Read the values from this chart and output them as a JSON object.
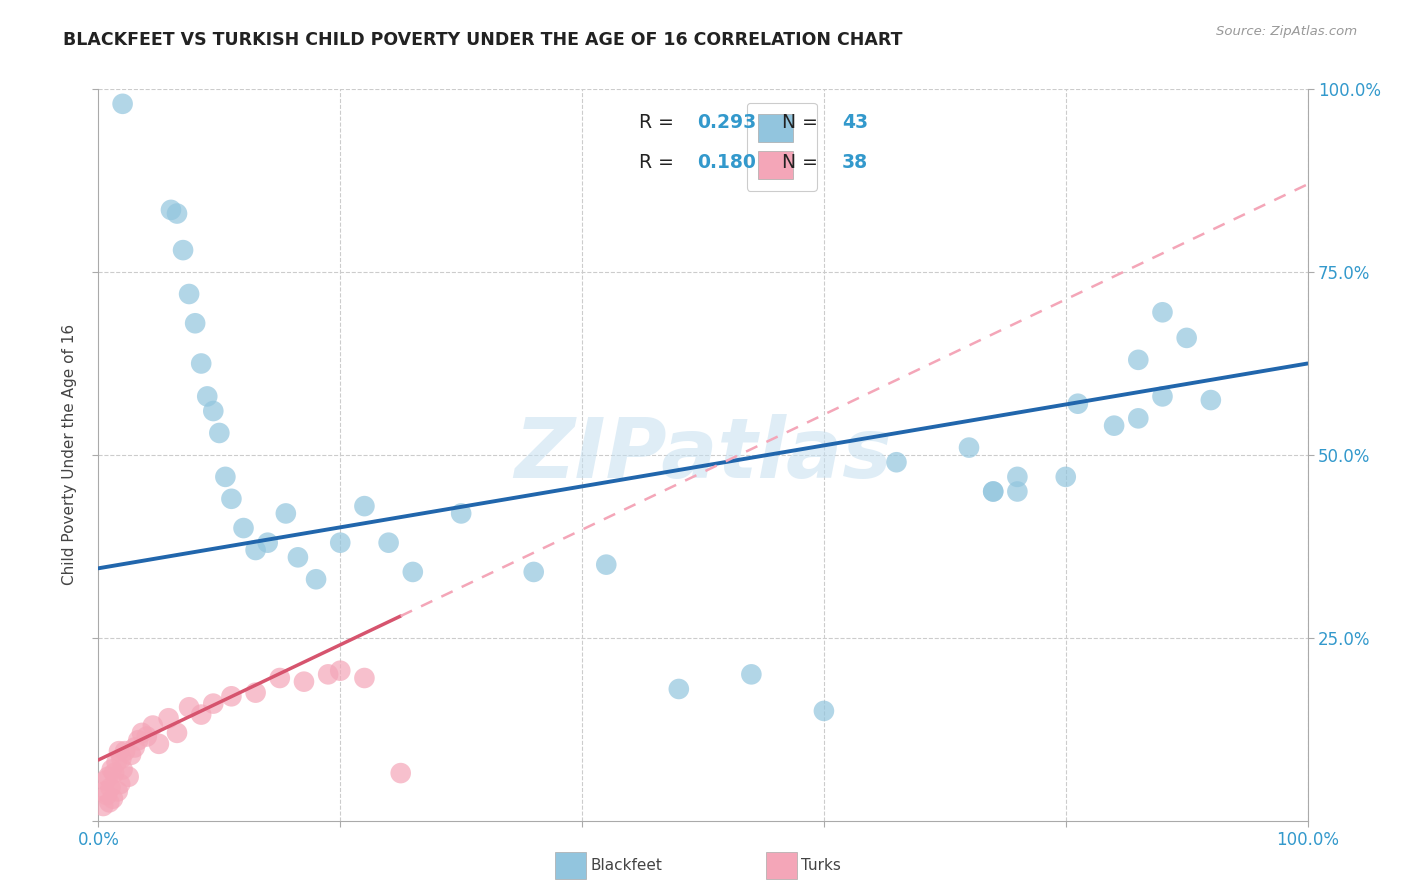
{
  "title": "BLACKFEET VS TURKISH CHILD POVERTY UNDER THE AGE OF 16 CORRELATION CHART",
  "source": "Source: ZipAtlas.com",
  "ylabel": "Child Poverty Under the Age of 16",
  "xlim": [
    0.0,
    1.0
  ],
  "ylim": [
    0.0,
    1.0
  ],
  "blackfeet_color": "#92c5de",
  "turks_color": "#f4a6b8",
  "trendline_blue_color": "#2166ac",
  "trendline_pink_color": "#d6546e",
  "trendline_dashed_color": "#f4a6b8",
  "watermark_color": "#c5dff0",
  "blackfeet_x": [
    0.02,
    0.06,
    0.065,
    0.07,
    0.075,
    0.08,
    0.085,
    0.09,
    0.095,
    0.1,
    0.105,
    0.11,
    0.12,
    0.13,
    0.14,
    0.155,
    0.165,
    0.18,
    0.2,
    0.22,
    0.24,
    0.26,
    0.3,
    0.36,
    0.42,
    0.48,
    0.54,
    0.6,
    0.66,
    0.72,
    0.74,
    0.76,
    0.8,
    0.84,
    0.86,
    0.88,
    0.9,
    0.92,
    0.88,
    0.86,
    0.81,
    0.76,
    0.74
  ],
  "blackfeet_y": [
    0.98,
    0.835,
    0.83,
    0.78,
    0.72,
    0.68,
    0.625,
    0.58,
    0.56,
    0.53,
    0.47,
    0.44,
    0.4,
    0.37,
    0.38,
    0.42,
    0.36,
    0.33,
    0.38,
    0.43,
    0.38,
    0.34,
    0.42,
    0.34,
    0.35,
    0.18,
    0.2,
    0.15,
    0.49,
    0.51,
    0.45,
    0.45,
    0.47,
    0.54,
    0.55,
    0.58,
    0.66,
    0.575,
    0.695,
    0.63,
    0.57,
    0.47,
    0.45
  ],
  "turks_x": [
    0.004,
    0.005,
    0.006,
    0.007,
    0.008,
    0.009,
    0.01,
    0.011,
    0.012,
    0.013,
    0.015,
    0.016,
    0.017,
    0.018,
    0.019,
    0.02,
    0.022,
    0.025,
    0.027,
    0.03,
    0.033,
    0.036,
    0.04,
    0.045,
    0.05,
    0.058,
    0.065,
    0.075,
    0.085,
    0.095,
    0.11,
    0.13,
    0.15,
    0.17,
    0.19,
    0.2,
    0.22,
    0.25
  ],
  "turks_y": [
    0.02,
    0.04,
    0.055,
    0.035,
    0.06,
    0.025,
    0.045,
    0.07,
    0.03,
    0.065,
    0.08,
    0.04,
    0.095,
    0.05,
    0.085,
    0.07,
    0.095,
    0.06,
    0.09,
    0.1,
    0.11,
    0.12,
    0.115,
    0.13,
    0.105,
    0.14,
    0.12,
    0.155,
    0.145,
    0.16,
    0.17,
    0.175,
    0.195,
    0.19,
    0.2,
    0.205,
    0.195,
    0.065
  ]
}
